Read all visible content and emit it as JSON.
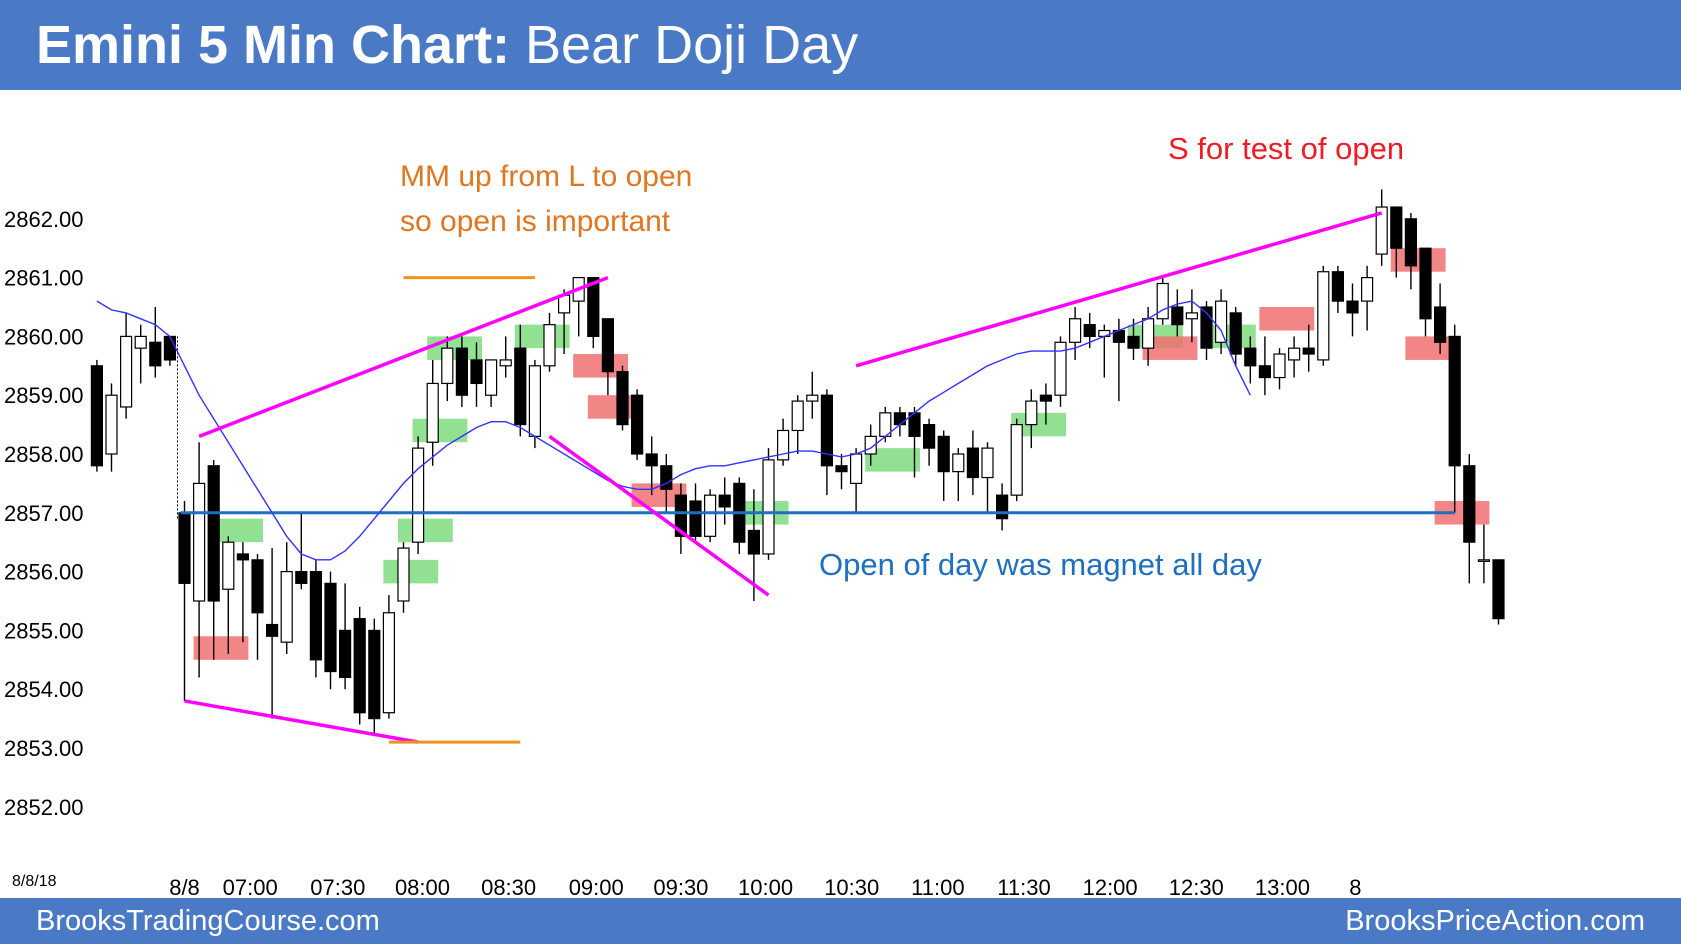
{
  "header": {
    "title_bold": "Emini 5 Min Chart:",
    "title_rest": " Bear Doji Day"
  },
  "footer": {
    "left": "BrooksTradingCourse.com",
    "right": "BrooksPriceAction.com"
  },
  "colors": {
    "header_bg": "#4a7ac6",
    "bull_bar": "#ffffff",
    "bear_bar": "#000000",
    "ema": "#3333ff",
    "trendline": "#ff00ff",
    "open_line": "#1f6fc0",
    "mm_lines": "#f0921e",
    "buy_box": "#7fdc7f",
    "sell_box": "#f07070"
  },
  "chart_data": {
    "type": "candlestick",
    "title": "Emini 5 Min Chart: Bear Doji Day",
    "date_label": "8/8/18",
    "ylim": [
      2851.2,
      2863.2
    ],
    "y_ticks": [
      "2852.00",
      "2853.00",
      "2854.00",
      "2855.00",
      "2856.00",
      "2857.00",
      "2858.00",
      "2859.00",
      "2860.00",
      "2861.00",
      "2862.00"
    ],
    "x_tick_labels": [
      "8/8",
      "07:00",
      "07:30",
      "08:00",
      "08:30",
      "09:00",
      "09:30",
      "10:00",
      "10:30",
      "11:00",
      "11:30",
      "12:00",
      "12:30",
      "13:00",
      "8"
    ],
    "open_of_day": 2857.0,
    "prior_day_bars": [
      {
        "o": 2859.5,
        "h": 2859.6,
        "l": 2857.7,
        "c": 2857.8
      },
      {
        "o": 2858.0,
        "h": 2859.2,
        "l": 2857.7,
        "c": 2859.0
      },
      {
        "o": 2858.8,
        "h": 2860.4,
        "l": 2858.6,
        "c": 2860.0
      },
      {
        "o": 2859.8,
        "h": 2860.2,
        "l": 2859.2,
        "c": 2860.0
      },
      {
        "o": 2859.9,
        "h": 2860.5,
        "l": 2859.3,
        "c": 2859.5
      },
      {
        "o": 2860.0,
        "h": 2860.0,
        "l": 2859.5,
        "c": 2859.6
      }
    ],
    "bars": [
      {
        "o": 2857.0,
        "h": 2857.2,
        "l": 2853.8,
        "c": 2855.8
      },
      {
        "o": 2855.5,
        "h": 2858.2,
        "l": 2854.2,
        "c": 2857.5
      },
      {
        "o": 2857.8,
        "h": 2857.9,
        "l": 2854.5,
        "c": 2855.5
      },
      {
        "o": 2855.7,
        "h": 2856.6,
        "l": 2854.6,
        "c": 2856.5
      },
      {
        "o": 2856.3,
        "h": 2856.5,
        "l": 2854.8,
        "c": 2856.2
      },
      {
        "o": 2856.2,
        "h": 2856.3,
        "l": 2854.5,
        "c": 2855.3
      },
      {
        "o": 2855.1,
        "h": 2856.4,
        "l": 2853.5,
        "c": 2854.9
      },
      {
        "o": 2854.8,
        "h": 2856.5,
        "l": 2854.6,
        "c": 2856.0
      },
      {
        "o": 2856.0,
        "h": 2857.0,
        "l": 2855.7,
        "c": 2855.8
      },
      {
        "o": 2856.0,
        "h": 2856.2,
        "l": 2854.2,
        "c": 2854.5
      },
      {
        "o": 2855.8,
        "h": 2856.0,
        "l": 2854.0,
        "c": 2854.3
      },
      {
        "o": 2855.0,
        "h": 2855.8,
        "l": 2854.0,
        "c": 2854.2
      },
      {
        "o": 2855.2,
        "h": 2855.4,
        "l": 2853.4,
        "c": 2853.6
      },
      {
        "o": 2855.0,
        "h": 2855.2,
        "l": 2853.2,
        "c": 2853.5
      },
      {
        "o": 2853.6,
        "h": 2855.6,
        "l": 2853.5,
        "c": 2855.3
      },
      {
        "o": 2855.5,
        "h": 2856.5,
        "l": 2855.3,
        "c": 2856.4
      },
      {
        "o": 2856.5,
        "h": 2858.3,
        "l": 2856.3,
        "c": 2858.1
      },
      {
        "o": 2858.2,
        "h": 2859.6,
        "l": 2857.8,
        "c": 2859.2
      },
      {
        "o": 2859.2,
        "h": 2860.0,
        "l": 2858.9,
        "c": 2859.8
      },
      {
        "o": 2859.8,
        "h": 2860.0,
        "l": 2858.8,
        "c": 2859.0
      },
      {
        "o": 2859.6,
        "h": 2859.9,
        "l": 2858.8,
        "c": 2859.2
      },
      {
        "o": 2859.0,
        "h": 2859.6,
        "l": 2858.8,
        "c": 2859.6
      },
      {
        "o": 2859.5,
        "h": 2860.0,
        "l": 2859.3,
        "c": 2859.6
      },
      {
        "o": 2859.8,
        "h": 2860.2,
        "l": 2858.3,
        "c": 2858.5
      },
      {
        "o": 2858.3,
        "h": 2859.6,
        "l": 2858.1,
        "c": 2859.5
      },
      {
        "o": 2859.5,
        "h": 2860.4,
        "l": 2859.4,
        "c": 2860.2
      },
      {
        "o": 2860.4,
        "h": 2860.8,
        "l": 2859.7,
        "c": 2860.7
      },
      {
        "o": 2860.6,
        "h": 2861.0,
        "l": 2860.0,
        "c": 2861.0
      },
      {
        "o": 2861.0,
        "h": 2861.0,
        "l": 2859.8,
        "c": 2860.0
      },
      {
        "o": 2860.3,
        "h": 2860.3,
        "l": 2859.0,
        "c": 2859.4
      },
      {
        "o": 2859.4,
        "h": 2859.5,
        "l": 2858.4,
        "c": 2858.5
      },
      {
        "o": 2859.0,
        "h": 2859.1,
        "l": 2857.9,
        "c": 2858.0
      },
      {
        "o": 2858.0,
        "h": 2858.3,
        "l": 2857.3,
        "c": 2857.8
      },
      {
        "o": 2857.8,
        "h": 2858.0,
        "l": 2857.0,
        "c": 2857.4
      },
      {
        "o": 2857.3,
        "h": 2857.5,
        "l": 2856.3,
        "c": 2856.6
      },
      {
        "o": 2857.2,
        "h": 2857.5,
        "l": 2856.5,
        "c": 2856.6
      },
      {
        "o": 2856.6,
        "h": 2857.4,
        "l": 2856.5,
        "c": 2857.3
      },
      {
        "o": 2857.3,
        "h": 2857.6,
        "l": 2856.8,
        "c": 2857.1
      },
      {
        "o": 2857.5,
        "h": 2857.6,
        "l": 2856.3,
        "c": 2856.5
      },
      {
        "o": 2856.7,
        "h": 2857.4,
        "l": 2855.5,
        "c": 2856.3
      },
      {
        "o": 2856.3,
        "h": 2858.1,
        "l": 2856.2,
        "c": 2857.9
      },
      {
        "o": 2857.9,
        "h": 2858.6,
        "l": 2857.8,
        "c": 2858.4
      },
      {
        "o": 2858.4,
        "h": 2859.0,
        "l": 2858.0,
        "c": 2858.9
      },
      {
        "o": 2858.9,
        "h": 2859.4,
        "l": 2858.6,
        "c": 2859.0
      },
      {
        "o": 2859.0,
        "h": 2859.1,
        "l": 2857.3,
        "c": 2857.8
      },
      {
        "o": 2857.8,
        "h": 2858.0,
        "l": 2857.4,
        "c": 2857.7
      },
      {
        "o": 2857.5,
        "h": 2858.1,
        "l": 2857.0,
        "c": 2858.0
      },
      {
        "o": 2858.0,
        "h": 2858.5,
        "l": 2857.8,
        "c": 2858.3
      },
      {
        "o": 2858.3,
        "h": 2858.8,
        "l": 2858.2,
        "c": 2858.7
      },
      {
        "o": 2858.7,
        "h": 2858.8,
        "l": 2858.3,
        "c": 2858.5
      },
      {
        "o": 2858.7,
        "h": 2858.8,
        "l": 2857.6,
        "c": 2858.3
      },
      {
        "o": 2858.5,
        "h": 2858.6,
        "l": 2857.8,
        "c": 2858.1
      },
      {
        "o": 2858.3,
        "h": 2858.4,
        "l": 2857.2,
        "c": 2857.7
      },
      {
        "o": 2857.7,
        "h": 2858.1,
        "l": 2857.2,
        "c": 2858.0
      },
      {
        "o": 2858.1,
        "h": 2858.4,
        "l": 2857.3,
        "c": 2857.6
      },
      {
        "o": 2857.6,
        "h": 2858.2,
        "l": 2857.0,
        "c": 2858.1
      },
      {
        "o": 2857.3,
        "h": 2857.5,
        "l": 2856.7,
        "c": 2856.9
      },
      {
        "o": 2857.3,
        "h": 2858.6,
        "l": 2857.2,
        "c": 2858.5
      },
      {
        "o": 2858.5,
        "h": 2859.1,
        "l": 2858.1,
        "c": 2858.9
      },
      {
        "o": 2859.0,
        "h": 2859.2,
        "l": 2858.5,
        "c": 2858.9
      },
      {
        "o": 2859.0,
        "h": 2860.0,
        "l": 2858.8,
        "c": 2859.9
      },
      {
        "o": 2859.9,
        "h": 2860.5,
        "l": 2859.6,
        "c": 2860.3
      },
      {
        "o": 2860.2,
        "h": 2860.4,
        "l": 2859.8,
        "c": 2860.0
      },
      {
        "o": 2860.0,
        "h": 2860.2,
        "l": 2859.3,
        "c": 2860.1
      },
      {
        "o": 2860.1,
        "h": 2860.3,
        "l": 2858.9,
        "c": 2859.9
      },
      {
        "o": 2860.0,
        "h": 2860.3,
        "l": 2859.6,
        "c": 2859.8
      },
      {
        "o": 2859.8,
        "h": 2860.5,
        "l": 2859.5,
        "c": 2860.3
      },
      {
        "o": 2860.3,
        "h": 2861.0,
        "l": 2860.2,
        "c": 2860.9
      },
      {
        "o": 2860.5,
        "h": 2860.8,
        "l": 2860.0,
        "c": 2860.2
      },
      {
        "o": 2860.3,
        "h": 2860.8,
        "l": 2859.9,
        "c": 2860.4
      },
      {
        "o": 2860.5,
        "h": 2860.6,
        "l": 2859.6,
        "c": 2859.8
      },
      {
        "o": 2859.9,
        "h": 2860.8,
        "l": 2859.7,
        "c": 2860.6
      },
      {
        "o": 2860.4,
        "h": 2860.5,
        "l": 2859.5,
        "c": 2859.7
      },
      {
        "o": 2859.8,
        "h": 2860.0,
        "l": 2859.2,
        "c": 2859.5
      },
      {
        "o": 2859.5,
        "h": 2860.0,
        "l": 2859.0,
        "c": 2859.3
      },
      {
        "o": 2859.3,
        "h": 2859.8,
        "l": 2859.1,
        "c": 2859.7
      },
      {
        "o": 2859.6,
        "h": 2860.0,
        "l": 2859.3,
        "c": 2859.8
      },
      {
        "o": 2859.8,
        "h": 2860.2,
        "l": 2859.4,
        "c": 2859.7
      },
      {
        "o": 2859.6,
        "h": 2861.2,
        "l": 2859.5,
        "c": 2861.1
      },
      {
        "o": 2861.1,
        "h": 2861.2,
        "l": 2860.4,
        "c": 2860.6
      },
      {
        "o": 2860.6,
        "h": 2860.9,
        "l": 2860.0,
        "c": 2860.4
      },
      {
        "o": 2860.6,
        "h": 2861.2,
        "l": 2860.1,
        "c": 2861.0
      },
      {
        "o": 2861.4,
        "h": 2862.5,
        "l": 2861.2,
        "c": 2862.2
      },
      {
        "o": 2862.2,
        "h": 2862.2,
        "l": 2861.0,
        "c": 2861.5
      },
      {
        "o": 2862.0,
        "h": 2862.1,
        "l": 2860.8,
        "c": 2861.2
      },
      {
        "o": 2861.5,
        "h": 2861.5,
        "l": 2860.0,
        "c": 2860.3
      },
      {
        "o": 2860.5,
        "h": 2860.9,
        "l": 2859.7,
        "c": 2859.9
      },
      {
        "o": 2860.0,
        "h": 2860.2,
        "l": 2857.0,
        "c": 2857.8
      },
      {
        "o": 2857.8,
        "h": 2858.0,
        "l": 2855.8,
        "c": 2856.5
      },
      {
        "o": 2856.2,
        "h": 2856.8,
        "l": 2855.8,
        "c": 2856.2
      },
      {
        "o": 2856.2,
        "h": 2856.2,
        "l": 2855.1,
        "c": 2855.2
      }
    ],
    "ema": [
      2860.6,
      2860.45,
      2860.4,
      2860.3,
      2860.2,
      2860.0,
      2859.5,
      2859.0,
      2858.6,
      2858.2,
      2857.8,
      2857.4,
      2857.0,
      2856.6,
      2856.3,
      2856.2,
      2856.2,
      2856.35,
      2856.6,
      2856.9,
      2857.2,
      2857.5,
      2857.75,
      2857.95,
      2858.15,
      2858.3,
      2858.45,
      2858.55,
      2858.55,
      2858.45,
      2858.3,
      2858.15,
      2858.0,
      2857.85,
      2857.7,
      2857.55,
      2857.45,
      2857.4,
      2857.4,
      2857.5,
      2857.65,
      2857.75,
      2857.8,
      2857.8,
      2857.85,
      2857.9,
      2857.95,
      2858.0,
      2858.05,
      2858.05,
      2858.0,
      2857.95,
      2858.0,
      2858.1,
      2858.3,
      2858.5,
      2858.7,
      2858.9,
      2859.05,
      2859.2,
      2859.35,
      2859.5,
      2859.6,
      2859.7,
      2859.75,
      2859.75,
      2859.75,
      2859.8,
      2859.9,
      2860.0,
      2860.1,
      2860.2,
      2860.3,
      2860.45,
      2860.55,
      2860.6,
      2860.4,
      2860.1,
      2859.5,
      2859.0
    ],
    "ema_start_index": -6,
    "trendlines": [
      {
        "from": [
          0,
          2853.8
        ],
        "to": [
          16,
          2853.1
        ]
      },
      {
        "from": [
          1,
          2858.3
        ],
        "to": [
          29,
          2861.0
        ]
      },
      {
        "from": [
          25,
          2858.3
        ],
        "to": [
          40,
          2855.6
        ]
      },
      {
        "from": [
          46,
          2859.5
        ],
        "to": [
          82,
          2862.1
        ]
      }
    ],
    "mm_lines": [
      {
        "from": [
          15,
          2861.0
        ],
        "to": [
          24,
          2861.0
        ]
      },
      {
        "from": [
          14,
          2853.1
        ],
        "to": [
          23,
          2853.1
        ]
      }
    ],
    "buy_boxes": [
      {
        "x": [
          2,
          5
        ],
        "y": [
          2856.5,
          2856.9
        ]
      },
      {
        "x": [
          14,
          17
        ],
        "y": [
          2855.8,
          2856.2
        ]
      },
      {
        "x": [
          15,
          18
        ],
        "y": [
          2856.5,
          2856.9
        ]
      },
      {
        "x": [
          16,
          19
        ],
        "y": [
          2858.2,
          2858.6
        ]
      },
      {
        "x": [
          17,
          20
        ],
        "y": [
          2859.6,
          2860.0
        ]
      },
      {
        "x": [
          23,
          26
        ],
        "y": [
          2859.8,
          2860.2
        ]
      },
      {
        "x": [
          38,
          41
        ],
        "y": [
          2856.8,
          2857.2
        ]
      },
      {
        "x": [
          47,
          50
        ],
        "y": [
          2857.7,
          2858.1
        ]
      },
      {
        "x": [
          57,
          60
        ],
        "y": [
          2858.3,
          2858.7
        ]
      },
      {
        "x": [
          65,
          68
        ],
        "y": [
          2859.8,
          2860.2
        ]
      },
      {
        "x": [
          70,
          73
        ],
        "y": [
          2859.8,
          2860.2
        ]
      }
    ],
    "sell_boxes": [
      {
        "x": [
          1,
          4
        ],
        "y": [
          2854.5,
          2854.9
        ]
      },
      {
        "x": [
          27,
          30
        ],
        "y": [
          2859.3,
          2859.7
        ]
      },
      {
        "x": [
          28,
          31
        ],
        "y": [
          2858.6,
          2859.0
        ]
      },
      {
        "x": [
          31,
          34
        ],
        "y": [
          2857.1,
          2857.5
        ]
      },
      {
        "x": [
          66,
          69
        ],
        "y": [
          2859.6,
          2860.0
        ]
      },
      {
        "x": [
          74,
          77
        ],
        "y": [
          2860.1,
          2860.5
        ]
      },
      {
        "x": [
          83,
          86
        ],
        "y": [
          2861.1,
          2861.5
        ]
      },
      {
        "x": [
          84,
          87
        ],
        "y": [
          2859.6,
          2860.0
        ]
      },
      {
        "x": [
          86,
          89
        ],
        "y": [
          2856.8,
          2857.2
        ]
      }
    ],
    "annotations": {
      "mm": [
        "MM up from L to open",
        "so open is important"
      ],
      "sell": "S for test of open",
      "open": "Open of day was magnet all day"
    }
  }
}
